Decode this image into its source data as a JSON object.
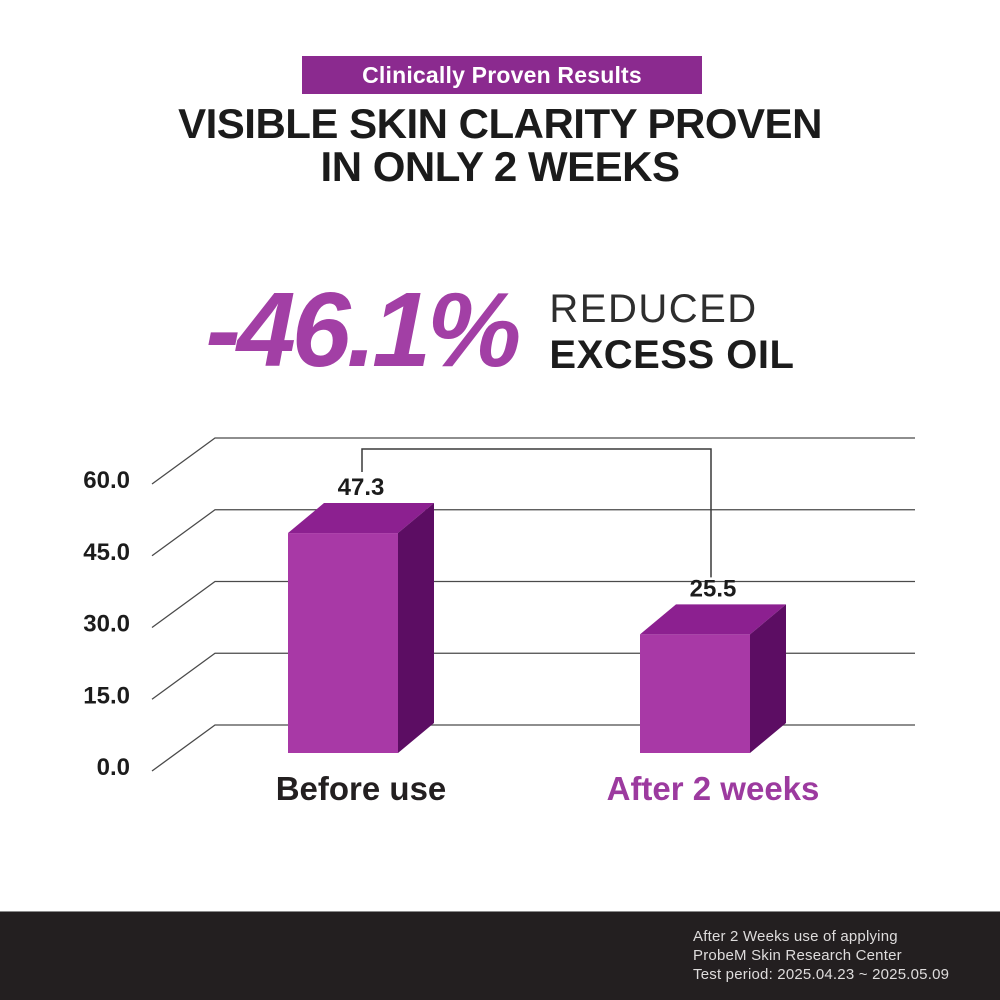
{
  "badge": {
    "label": "Clinically Proven Results",
    "bg_color": "#8B2A8F"
  },
  "heading": {
    "line1": "VISIBLE SKIN CLARITY PROVEN",
    "line2": "IN ONLY 2 WEEKS"
  },
  "stat": {
    "value": "-46.1%",
    "value_color": "#A23FA5",
    "label_line1": "REDUCED",
    "label_line2": "EXCESS OIL"
  },
  "chart_data": {
    "type": "bar",
    "style": "3d-perspective",
    "categories": [
      "Before use",
      "After 2 weeks"
    ],
    "values": [
      47.3,
      25.5
    ],
    "value_labels": [
      "47.3",
      "25.5"
    ],
    "y_ticks": [
      60.0,
      45.0,
      30.0,
      15.0,
      0.0
    ],
    "y_tick_labels": [
      "60.0",
      "45.0",
      "30.0",
      "15.0",
      "0.0"
    ],
    "ylim": [
      0,
      60
    ],
    "grid": true,
    "legend": false,
    "title": "",
    "xlabel": "",
    "ylabel": "",
    "connector_between_bar_tops": true,
    "bar_color_front": "#A839A6",
    "bar_color_top": "#8C2090",
    "bar_color_side": "#5C0D63",
    "category_label_colors": [
      "#231F20",
      "#9C3A9F"
    ],
    "grid_color": "#4a4a4a",
    "connector_color": "#3a3a3a"
  },
  "footer": {
    "bg_color": "#231F20",
    "lines": [
      "After 2 Weeks use of applying",
      "ProbeM Skin Research Center",
      "Test period: 2025.04.23 ~ 2025.05.09"
    ]
  }
}
